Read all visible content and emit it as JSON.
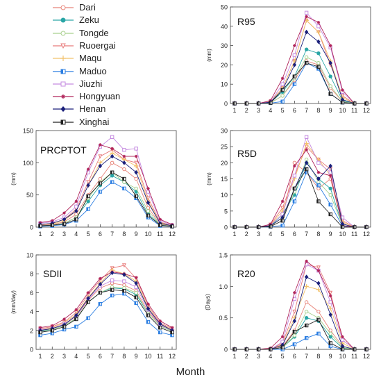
{
  "legend": [
    {
      "name": "Dari",
      "color": "#e8857a",
      "marker": "circle-open"
    },
    {
      "name": "Zeku",
      "color": "#2aa6a6",
      "marker": "circle-filled"
    },
    {
      "name": "Tongde",
      "color": "#a8d08d",
      "marker": "circle-open"
    },
    {
      "name": "Ruoergai",
      "color": "#e87a7a",
      "marker": "triangle-down"
    },
    {
      "name": "Maqu",
      "color": "#f2c26b",
      "marker": "plus"
    },
    {
      "name": "Maduo",
      "color": "#2a7de1",
      "marker": "square-half"
    },
    {
      "name": "Jiuzhi",
      "color": "#c58be0",
      "marker": "square-open"
    },
    {
      "name": "Hongyuan",
      "color": "#b0245a",
      "marker": "star"
    },
    {
      "name": "Henan",
      "color": "#1a1f7a",
      "marker": "diamond-filled"
    },
    {
      "name": "Xinghai",
      "color": "#222222",
      "marker": "square-half"
    }
  ],
  "xlabel": "Month",
  "chart_data": [
    {
      "type": "line",
      "title": "R95",
      "ylabel": "(mm)",
      "ylim": [
        0,
        50
      ],
      "yticks": [
        0,
        10,
        20,
        30,
        40,
        50
      ],
      "categories": [
        "1",
        "2",
        "3",
        "4",
        "5",
        "6",
        "7",
        "8",
        "9",
        "10",
        "11",
        "12"
      ],
      "series": [
        {
          "name": "Dari",
          "values": [
            0,
            0,
            0,
            0.3,
            4,
            12,
            22,
            20,
            8,
            1,
            0,
            0
          ]
        },
        {
          "name": "Zeku",
          "values": [
            0,
            0,
            0,
            0.5,
            6,
            14,
            28,
            26,
            14,
            1.5,
            0,
            0
          ]
        },
        {
          "name": "Tongde",
          "values": [
            0,
            0,
            0,
            0.3,
            4,
            13,
            24,
            21,
            9,
            1,
            0,
            0
          ]
        },
        {
          "name": "Ruoergai",
          "values": [
            0,
            0,
            0,
            1,
            8,
            22,
            43,
            37,
            20,
            4,
            0,
            0
          ]
        },
        {
          "name": "Maqu",
          "values": [
            0,
            0,
            0,
            0.8,
            8,
            22,
            43,
            37,
            22,
            3,
            0,
            0
          ]
        },
        {
          "name": "Maduo",
          "values": [
            0,
            0,
            0,
            0.2,
            1,
            10,
            21,
            18,
            5,
            0.5,
            0,
            0
          ]
        },
        {
          "name": "Jiuzhi",
          "values": [
            0,
            0,
            0,
            0.8,
            10,
            25,
            47,
            40,
            29,
            6,
            0,
            0
          ]
        },
        {
          "name": "Hongyuan",
          "values": [
            0,
            0,
            0,
            1.5,
            13,
            30,
            45,
            42,
            30,
            7,
            0,
            0
          ]
        },
        {
          "name": "Henan",
          "values": [
            0,
            0,
            0,
            0.7,
            7,
            20,
            37,
            32,
            21,
            2,
            0,
            0
          ]
        },
        {
          "name": "Xinghai",
          "values": [
            0,
            0,
            0,
            0.3,
            7,
            14,
            21,
            19,
            5,
            0.5,
            0,
            0
          ]
        }
      ]
    },
    {
      "type": "line",
      "title": "PRCPTOT",
      "ylabel": "(mm)",
      "ylim": [
        0,
        150
      ],
      "yticks": [
        0,
        50,
        100,
        150
      ],
      "categories": [
        "1",
        "2",
        "3",
        "4",
        "5",
        "6",
        "7",
        "8",
        "9",
        "10",
        "11",
        "12"
      ],
      "series": [
        {
          "name": "Dari",
          "values": [
            3,
            4,
            8,
            20,
            50,
            75,
            100,
            90,
            75,
            30,
            5,
            2
          ]
        },
        {
          "name": "Zeku",
          "values": [
            2,
            3,
            6,
            15,
            40,
            65,
            80,
            70,
            55,
            20,
            4,
            1
          ]
        },
        {
          "name": "Tongde",
          "values": [
            2,
            3,
            6,
            15,
            45,
            70,
            85,
            70,
            60,
            25,
            4,
            1
          ]
        },
        {
          "name": "Ruoergai",
          "values": [
            4,
            6,
            12,
            28,
            70,
            110,
            120,
            105,
            100,
            45,
            8,
            2
          ]
        },
        {
          "name": "Maqu",
          "values": [
            4,
            5,
            10,
            25,
            65,
            100,
            115,
            105,
            95,
            40,
            7,
            2
          ]
        },
        {
          "name": "Maduo",
          "values": [
            1,
            2,
            4,
            10,
            28,
            55,
            70,
            60,
            45,
            15,
            2,
            1
          ]
        },
        {
          "name": "Jiuzhi",
          "values": [
            6,
            8,
            15,
            32,
            85,
            125,
            140,
            120,
            122,
            55,
            10,
            3
          ]
        },
        {
          "name": "Hongyuan",
          "values": [
            7,
            10,
            22,
            40,
            90,
            128,
            122,
            110,
            110,
            60,
            12,
            4
          ]
        },
        {
          "name": "Henan",
          "values": [
            4,
            6,
            12,
            25,
            65,
            95,
            110,
            100,
            85,
            38,
            6,
            2
          ]
        },
        {
          "name": "Xinghai",
          "values": [
            2,
            3,
            5,
            12,
            48,
            68,
            85,
            75,
            48,
            18,
            3,
            1
          ]
        }
      ]
    },
    {
      "type": "line",
      "title": "R5D",
      "ylabel": "(mm)",
      "ylim": [
        0,
        30
      ],
      "yticks": [
        0,
        5,
        10,
        15,
        20,
        25,
        30
      ],
      "categories": [
        "1",
        "2",
        "3",
        "4",
        "5",
        "6",
        "7",
        "8",
        "9",
        "10",
        "11",
        "12"
      ],
      "series": [
        {
          "name": "Dari",
          "values": [
            0,
            0,
            0,
            0.2,
            3,
            20,
            17,
            12,
            15,
            1,
            0,
            0
          ]
        },
        {
          "name": "Zeku",
          "values": [
            0,
            0,
            0,
            0.3,
            4,
            10,
            20,
            15,
            12,
            0.5,
            0,
            0
          ]
        },
        {
          "name": "Tongde",
          "values": [
            0,
            0,
            0,
            0.2,
            3,
            11,
            21,
            14,
            10,
            0.5,
            0,
            0
          ]
        },
        {
          "name": "Ruoergai",
          "values": [
            0,
            0,
            0,
            0.8,
            6,
            16,
            25,
            21,
            18,
            2,
            0,
            0
          ]
        },
        {
          "name": "Maqu",
          "values": [
            0,
            0,
            0,
            0.6,
            5,
            15,
            26,
            21,
            16,
            1.5,
            0,
            0
          ]
        },
        {
          "name": "Maduo",
          "values": [
            0,
            0,
            0,
            0.1,
            0.5,
            8,
            17,
            13,
            7,
            0.3,
            0,
            0
          ]
        },
        {
          "name": "Jiuzhi",
          "values": [
            0,
            0,
            0,
            0.6,
            4,
            16,
            28,
            20,
            17,
            3,
            0,
            0
          ]
        },
        {
          "name": "Hongyuan",
          "values": [
            0,
            0,
            0,
            0.9,
            8,
            19,
            24,
            17,
            16,
            0.5,
            0,
            0
          ]
        },
        {
          "name": "Henan",
          "values": [
            0,
            0,
            0,
            0.4,
            3,
            12,
            20,
            15,
            19,
            1,
            0,
            0
          ]
        },
        {
          "name": "Xinghai",
          "values": [
            0,
            0,
            0,
            0.2,
            2,
            12,
            18,
            8,
            4,
            0,
            0,
            0
          ]
        }
      ]
    },
    {
      "type": "line",
      "title": "SDII",
      "ylabel": "(mm/day)",
      "ylim": [
        0,
        10
      ],
      "yticks": [
        0,
        2,
        4,
        6,
        8,
        10
      ],
      "categories": [
        "1",
        "2",
        "3",
        "4",
        "5",
        "6",
        "7",
        "8",
        "9",
        "10",
        "11",
        "12"
      ],
      "series": [
        {
          "name": "Dari",
          "values": [
            2.1,
            2.2,
            2.6,
            3.5,
            5.2,
            6.5,
            7,
            6.8,
            6.2,
            4,
            2.6,
            2
          ]
        },
        {
          "name": "Zeku",
          "values": [
            1.9,
            2.1,
            2.5,
            3.3,
            5,
            6,
            6.5,
            6.4,
            5.8,
            3.8,
            2.5,
            1.9
          ]
        },
        {
          "name": "Tongde",
          "values": [
            2,
            2.1,
            2.5,
            3.3,
            5,
            6,
            6.6,
            6.5,
            6,
            3.8,
            2.5,
            1.9
          ]
        },
        {
          "name": "Ruoergai",
          "values": [
            2.2,
            2.4,
            2.9,
            3.9,
            5.8,
            7.3,
            8.6,
            8.9,
            7.5,
            4.6,
            2.8,
            2.2
          ]
        },
        {
          "name": "Maqu",
          "values": [
            2.1,
            2.3,
            2.8,
            3.7,
            5.5,
            7,
            8.4,
            8,
            7.2,
            4.4,
            2.7,
            2.1
          ]
        },
        {
          "name": "Maduo",
          "values": [
            1.5,
            1.7,
            2.1,
            2.4,
            3.3,
            4.8,
            5.7,
            5.9,
            4.9,
            2.9,
            1.8,
            1.5
          ]
        },
        {
          "name": "Jiuzhi",
          "values": [
            2.1,
            2.2,
            2.7,
            3.5,
            5.3,
            6.7,
            7.3,
            7.2,
            6.6,
            4.2,
            2.6,
            2
          ]
        },
        {
          "name": "Hongyuan",
          "values": [
            2.3,
            2.5,
            3.2,
            4.2,
            6,
            7.5,
            8.2,
            8,
            7.6,
            4.8,
            3,
            2.3
          ]
        },
        {
          "name": "Henan",
          "values": [
            2,
            2.2,
            2.6,
            3.6,
            5.4,
            6.9,
            8.1,
            7.9,
            7,
            4.3,
            2.7,
            2
          ]
        },
        {
          "name": "Xinghai",
          "values": [
            1.8,
            2,
            2.4,
            3.2,
            5,
            6,
            6.3,
            6.2,
            5.5,
            3.6,
            2.3,
            1.8
          ]
        }
      ]
    },
    {
      "type": "line",
      "title": "R20",
      "ylabel": "(Days)",
      "ylim": [
        0,
        1.5
      ],
      "yticks": [
        0,
        0.5,
        1.0,
        1.5
      ],
      "categories": [
        "1",
        "2",
        "3",
        "4",
        "5",
        "6",
        "7",
        "8",
        "9",
        "10",
        "11",
        "12"
      ],
      "series": [
        {
          "name": "Dari",
          "values": [
            0,
            0,
            0,
            0,
            0.05,
            0.3,
            0.75,
            0.6,
            0.3,
            0.05,
            0,
            0
          ]
        },
        {
          "name": "Zeku",
          "values": [
            0,
            0,
            0,
            0,
            0.03,
            0.2,
            0.5,
            0.45,
            0.2,
            0.02,
            0,
            0
          ]
        },
        {
          "name": "Tongde",
          "values": [
            0,
            0,
            0,
            0,
            0.03,
            0.22,
            0.6,
            0.5,
            0.25,
            0.03,
            0,
            0
          ]
        },
        {
          "name": "Ruoergai",
          "values": [
            0,
            0,
            0,
            0,
            0.1,
            0.6,
            1.35,
            1.3,
            0.9,
            0.15,
            0,
            0
          ]
        },
        {
          "name": "Maqu",
          "values": [
            0,
            0,
            0,
            0,
            0.08,
            0.5,
            1.0,
            0.95,
            0.65,
            0.1,
            0,
            0
          ]
        },
        {
          "name": "Maduo",
          "values": [
            0,
            0,
            0,
            0,
            0,
            0.08,
            0.18,
            0.25,
            0.05,
            0,
            0,
            0
          ]
        },
        {
          "name": "Jiuzhi",
          "values": [
            0,
            0,
            0,
            0,
            0.12,
            0.8,
            1.35,
            1.25,
            0.75,
            0.15,
            0,
            0
          ]
        },
        {
          "name": "Hongyuan",
          "values": [
            0,
            0,
            0,
            0.02,
            0.2,
            0.9,
            1.4,
            1.25,
            0.85,
            0.2,
            0,
            0
          ]
        },
        {
          "name": "Henan",
          "values": [
            0,
            0,
            0,
            0,
            0.07,
            0.45,
            1.15,
            1.05,
            0.55,
            0.05,
            0,
            0
          ]
        },
        {
          "name": "Xinghai",
          "values": [
            0,
            0,
            0,
            0,
            0.03,
            0.28,
            0.38,
            0.47,
            0.1,
            0,
            0,
            0
          ]
        }
      ]
    }
  ]
}
